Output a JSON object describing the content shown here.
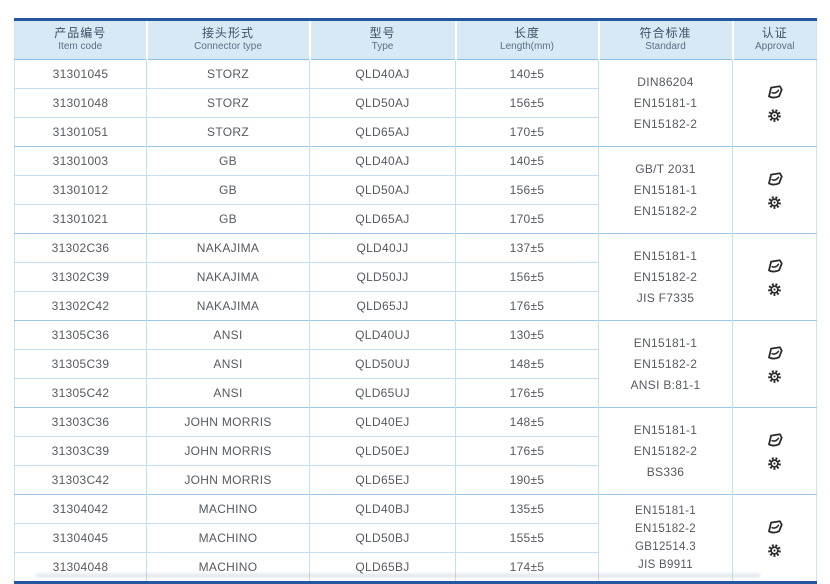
{
  "table": {
    "colors": {
      "navy_border": "#2457a0",
      "header_bg": "#d8e9f6",
      "row_line": "#c3e0f2",
      "group_line": "#9cc7e5",
      "body_text": "#555a62",
      "icon": "#2b2b2b"
    },
    "columns": [
      {
        "id": "item_code",
        "zh": "产品编号",
        "en": "Item code"
      },
      {
        "id": "connector_type",
        "zh": "接头形式",
        "en": "Connector type"
      },
      {
        "id": "type",
        "zh": "型号",
        "en": "Type"
      },
      {
        "id": "length",
        "zh": "长度",
        "en": "Length(mm)"
      },
      {
        "id": "standard",
        "zh": "符合标准",
        "en": "Standard"
      },
      {
        "id": "approval",
        "zh": "认证",
        "en": "Approval"
      }
    ],
    "approval_icons": [
      {
        "name": "approval-logo-icon"
      },
      {
        "name": "wheelmark-icon"
      }
    ],
    "groups": [
      {
        "connector": "STORZ",
        "rows": [
          {
            "item_code": "31301045",
            "connector_type": "STORZ",
            "type": "QLD40AJ",
            "length": "140±5"
          },
          {
            "item_code": "31301048",
            "connector_type": "STORZ",
            "type": "QLD50AJ",
            "length": "156±5"
          },
          {
            "item_code": "31301051",
            "connector_type": "STORZ",
            "type": "QLD65AJ",
            "length": "170±5"
          }
        ],
        "standards": [
          "DIN86204",
          "EN15181-1",
          "EN15182-2"
        ]
      },
      {
        "connector": "GB",
        "rows": [
          {
            "item_code": "31301003",
            "connector_type": "GB",
            "type": "QLD40AJ",
            "length": "140±5"
          },
          {
            "item_code": "31301012",
            "connector_type": "GB",
            "type": "QLD50AJ",
            "length": "156±5"
          },
          {
            "item_code": "31301021",
            "connector_type": "GB",
            "type": "QLD65AJ",
            "length": "170±5"
          }
        ],
        "standards": [
          "GB/T 2031",
          "EN15181-1",
          "EN15182-2"
        ]
      },
      {
        "connector": "NAKAJIMA",
        "rows": [
          {
            "item_code": "31302C36",
            "connector_type": "NAKAJIMA",
            "type": "QLD40JJ",
            "length": "137±5"
          },
          {
            "item_code": "31302C39",
            "connector_type": "NAKAJIMA",
            "type": "QLD50JJ",
            "length": "156±5"
          },
          {
            "item_code": "31302C42",
            "connector_type": "NAKAJIMA",
            "type": "QLD65JJ",
            "length": "176±5"
          }
        ],
        "standards": [
          "EN15181-1",
          "EN15182-2",
          "JIS F7335"
        ]
      },
      {
        "connector": "ANSI",
        "rows": [
          {
            "item_code": "31305C36",
            "connector_type": "ANSI",
            "type": "QLD40UJ",
            "length": "130±5"
          },
          {
            "item_code": "31305C39",
            "connector_type": "ANSI",
            "type": "QLD50UJ",
            "length": "148±5"
          },
          {
            "item_code": "31305C42",
            "connector_type": "ANSI",
            "type": "QLD65UJ",
            "length": "176±5"
          }
        ],
        "standards": [
          "EN15181-1",
          "EN15182-2",
          "ANSI B:81-1"
        ]
      },
      {
        "connector": "JOHN MORRIS",
        "rows": [
          {
            "item_code": "31303C36",
            "connector_type": "JOHN MORRIS",
            "type": "QLD40EJ",
            "length": "148±5"
          },
          {
            "item_code": "31303C39",
            "connector_type": "JOHN MORRIS",
            "type": "QLD50EJ",
            "length": "176±5"
          },
          {
            "item_code": "31303C42",
            "connector_type": "JOHN MORRIS",
            "type": "QLD65EJ",
            "length": "190±5"
          }
        ],
        "standards": [
          "EN15181-1",
          "EN15182-2",
          "BS336"
        ]
      },
      {
        "connector": "MACHINO",
        "rows": [
          {
            "item_code": "31304042",
            "connector_type": "MACHINO",
            "type": "QLD40BJ",
            "length": "135±5"
          },
          {
            "item_code": "31304045",
            "connector_type": "MACHINO",
            "type": "QLD50BJ",
            "length": "155±5"
          },
          {
            "item_code": "31304048",
            "connector_type": "MACHINO",
            "type": "QLD65BJ",
            "length": "174±5"
          }
        ],
        "standards": [
          "EN15181-1",
          "EN15182-2",
          "GB12514.3",
          "JIS B9911"
        ]
      }
    ]
  }
}
